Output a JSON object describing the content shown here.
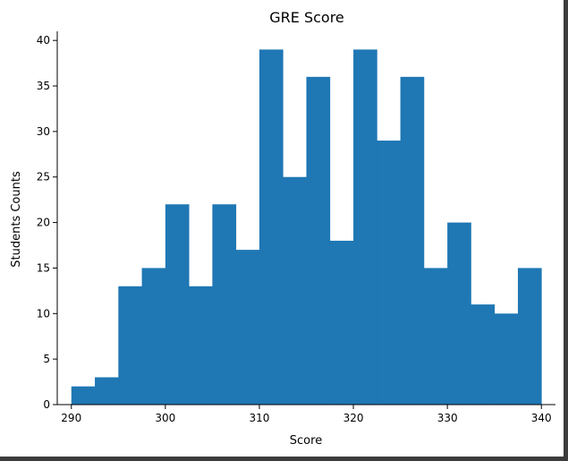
{
  "chart_data": {
    "type": "bar",
    "title": "GRE Score",
    "xlabel": "Score",
    "ylabel": "Students Counts",
    "bin_edges": [
      290,
      292.5,
      295,
      297.5,
      300,
      302.5,
      305,
      307.5,
      310,
      312.5,
      315,
      317.5,
      320,
      322.5,
      325,
      327.5,
      330,
      332.5,
      335,
      337.5,
      340
    ],
    "values": [
      2,
      3,
      13,
      15,
      22,
      13,
      22,
      17,
      39,
      25,
      36,
      18,
      39,
      29,
      36,
      15,
      20,
      11,
      10,
      15
    ],
    "xlim": [
      288.5,
      341.5
    ],
    "ylim": [
      0,
      41
    ],
    "xticks": [
      290,
      300,
      310,
      320,
      330,
      340
    ],
    "yticks": [
      0,
      5,
      10,
      15,
      20,
      25,
      30,
      35,
      40
    ],
    "bar_color": "#1f77b4",
    "grid": false
  }
}
